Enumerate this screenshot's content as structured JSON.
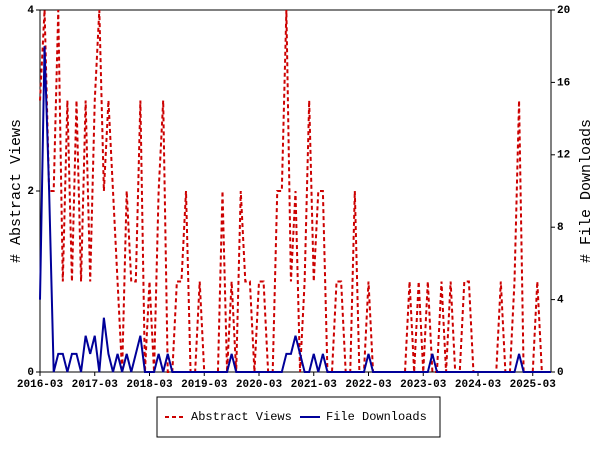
{
  "chart_data": {
    "type": "line",
    "y_label": "# Abstract Views",
    "y2_label": "# File Downloads",
    "categories": [
      "2016-03",
      null,
      null,
      null,
      null,
      null,
      null,
      null,
      null,
      null,
      null,
      null,
      "2017-03",
      null,
      null,
      null,
      null,
      null,
      null,
      null,
      null,
      null,
      null,
      null,
      "2018-03",
      null,
      null,
      null,
      null,
      null,
      null,
      null,
      null,
      null,
      null,
      null,
      "2019-03",
      null,
      null,
      null,
      null,
      null,
      null,
      null,
      null,
      null,
      null,
      null,
      "2020-03",
      null,
      null,
      null,
      null,
      null,
      null,
      null,
      null,
      null,
      null,
      null,
      "2021-03",
      null,
      null,
      null,
      null,
      null,
      null,
      null,
      null,
      null,
      null,
      null,
      "2022-03",
      null,
      null,
      null,
      null,
      null,
      null,
      null,
      null,
      null,
      null,
      null,
      "2023-03",
      null,
      null,
      null,
      null,
      null,
      null,
      null,
      null,
      null,
      null,
      null,
      "2024-03",
      null,
      null,
      null,
      null,
      null,
      null,
      null,
      null,
      null,
      null,
      null,
      "2025-03",
      null,
      null,
      null,
      null
    ],
    "series": [
      {
        "name": "Abstract Views",
        "color": "#cc0000",
        "dashed": true,
        "axis": "y",
        "values": [
          3,
          4,
          2,
          2,
          4,
          1,
          3,
          1,
          3,
          1,
          3,
          1,
          3,
          4,
          2,
          3,
          2,
          1,
          0,
          2,
          1,
          1,
          3,
          0,
          1,
          0,
          2,
          3,
          0,
          0,
          1,
          1,
          2,
          0,
          0,
          1,
          0,
          0,
          0,
          0,
          2,
          0,
          1,
          0,
          2,
          1,
          1,
          0,
          1,
          1,
          0,
          0,
          2,
          2,
          4,
          1,
          2,
          0,
          1,
          3,
          1,
          2,
          2,
          0,
          0,
          1,
          1,
          0,
          0,
          2,
          0,
          0,
          1,
          0,
          0,
          0,
          0,
          0,
          0,
          0,
          0,
          1,
          0,
          1,
          0,
          1,
          0,
          0,
          1,
          0,
          1,
          0,
          0,
          1,
          1,
          0,
          0,
          0,
          0,
          0,
          0,
          1,
          0,
          0,
          1,
          3,
          0,
          0,
          0,
          1,
          0,
          0,
          0
        ]
      },
      {
        "name": "File Downloads",
        "color": "#000099",
        "dashed": false,
        "axis": "y2",
        "values": [
          4,
          18,
          10,
          0,
          1,
          1,
          0,
          1,
          1,
          0,
          2,
          1,
          2,
          0,
          3,
          1,
          0,
          1,
          0,
          1,
          0,
          1,
          2,
          0,
          0,
          0,
          1,
          0,
          1,
          0,
          0,
          0,
          0,
          0,
          0,
          0,
          0,
          0,
          0,
          0,
          0,
          0,
          1,
          0,
          0,
          0,
          0,
          0,
          0,
          0,
          0,
          0,
          0,
          0,
          1,
          1,
          2,
          1,
          0,
          0,
          1,
          0,
          1,
          0,
          0,
          0,
          0,
          0,
          0,
          0,
          0,
          0,
          1,
          0,
          0,
          0,
          0,
          0,
          0,
          0,
          0,
          0,
          0,
          0,
          0,
          0,
          1,
          0,
          0,
          0,
          0,
          0,
          0,
          0,
          0,
          0,
          0,
          0,
          0,
          0,
          0,
          0,
          0,
          0,
          0,
          1,
          0,
          0,
          0,
          0,
          0,
          0,
          0
        ]
      }
    ],
    "ylim": [
      0,
      4
    ],
    "yticks": [
      0,
      2,
      4
    ],
    "y2lim": [
      0,
      20
    ],
    "y2ticks": [
      0,
      4,
      8,
      12,
      16,
      20
    ],
    "legend": "bottom"
  }
}
